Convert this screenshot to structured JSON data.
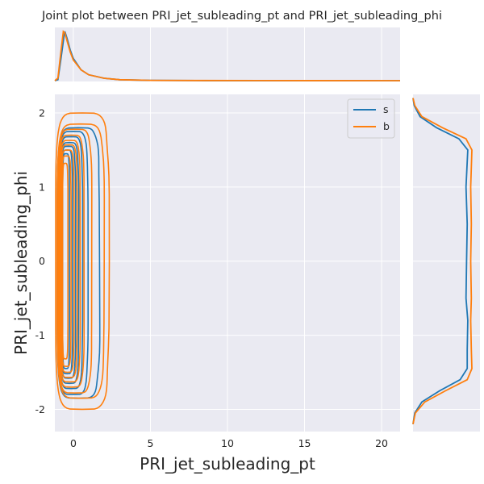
{
  "chart_data": {
    "type": "kde-jointplot",
    "title": "Joint plot between PRI_jet_subleading_pt and PRI_jet_subleading_phi",
    "xlabel": "PRI_jet_subleading_pt",
    "ylabel": "PRI_jet_subleading_phi",
    "xlim": [
      -1.2,
      21.2
    ],
    "ylim": [
      -2.3,
      2.25
    ],
    "x_ticks": [
      0,
      5,
      10,
      15,
      20
    ],
    "y_ticks": [
      -2,
      -1,
      0,
      1,
      2
    ],
    "grid": true,
    "legend_position": "upper-right",
    "series": [
      {
        "name": "s",
        "color": "#1f77b4",
        "contours": [
          {
            "x0": -1.05,
            "x1": 1.7,
            "y0": -1.85,
            "y1": 1.8
          },
          {
            "x0": -0.95,
            "x1": 0.95,
            "y0": -1.8,
            "y1": 1.75
          },
          {
            "x0": -0.9,
            "x1": 0.6,
            "y0": -1.72,
            "y1": 1.68
          },
          {
            "x0": -0.85,
            "x1": 0.35,
            "y0": -1.65,
            "y1": 1.6
          },
          {
            "x0": -0.8,
            "x1": 0.15,
            "y0": -1.58,
            "y1": 1.55
          },
          {
            "x0": -0.75,
            "x1": -0.05,
            "y0": -1.52,
            "y1": 1.5
          },
          {
            "x0": -0.7,
            "x1": -0.25,
            "y0": -1.45,
            "y1": 1.45
          }
        ],
        "x_marginal": [
          [
            -1.2,
            0
          ],
          [
            -1.0,
            0.02
          ],
          [
            -0.8,
            0.45
          ],
          [
            -0.6,
            0.92
          ],
          [
            -0.55,
            1.0
          ],
          [
            -0.4,
            0.85
          ],
          [
            -0.2,
            0.62
          ],
          [
            0,
            0.45
          ],
          [
            0.5,
            0.22
          ],
          [
            1,
            0.12
          ],
          [
            2,
            0.05
          ],
          [
            3,
            0.02
          ],
          [
            5,
            0.006
          ],
          [
            8,
            0.002
          ],
          [
            12,
            0.0
          ],
          [
            21.2,
            0.0
          ]
        ],
        "y_marginal": [
          [
            -2.2,
            0
          ],
          [
            -2.05,
            0.03
          ],
          [
            -1.9,
            0.15
          ],
          [
            -1.75,
            0.45
          ],
          [
            -1.6,
            0.8
          ],
          [
            -1.45,
            0.92
          ],
          [
            -1.2,
            0.92
          ],
          [
            -0.8,
            0.93
          ],
          [
            -0.5,
            0.9
          ],
          [
            0,
            0.91
          ],
          [
            0.5,
            0.92
          ],
          [
            1,
            0.9
          ],
          [
            1.5,
            0.93
          ],
          [
            1.65,
            0.78
          ],
          [
            1.8,
            0.4
          ],
          [
            1.95,
            0.12
          ],
          [
            2.1,
            0.02
          ],
          [
            2.2,
            0
          ]
        ]
      },
      {
        "name": "b",
        "color": "#ff7f0e",
        "contours": [
          {
            "x0": -1.15,
            "x1": 2.3,
            "y0": -2.0,
            "y1": 2.0
          },
          {
            "x0": -1.05,
            "x1": 2.0,
            "y0": -1.85,
            "y1": 1.85
          },
          {
            "x0": -1.0,
            "x1": 1.2,
            "y0": -1.78,
            "y1": 1.78
          },
          {
            "x0": -0.95,
            "x1": 0.7,
            "y0": -1.7,
            "y1": 1.7
          },
          {
            "x0": -0.9,
            "x1": 0.45,
            "y0": -1.63,
            "y1": 1.63
          },
          {
            "x0": -0.85,
            "x1": 0.25,
            "y0": -1.57,
            "y1": 1.57
          },
          {
            "x0": -0.8,
            "x1": 0.05,
            "y0": -1.5,
            "y1": 1.5
          },
          {
            "x0": -0.75,
            "x1": -0.15,
            "y0": -1.42,
            "y1": 1.42
          },
          {
            "x0": -0.7,
            "x1": -0.35,
            "y0": -1.32,
            "y1": 1.32
          }
        ],
        "x_marginal": [
          [
            -1.2,
            0
          ],
          [
            -1.0,
            0.05
          ],
          [
            -0.8,
            0.6
          ],
          [
            -0.65,
            1.0
          ],
          [
            -0.55,
            0.97
          ],
          [
            -0.4,
            0.8
          ],
          [
            -0.2,
            0.58
          ],
          [
            0,
            0.42
          ],
          [
            0.5,
            0.22
          ],
          [
            1,
            0.12
          ],
          [
            2,
            0.05
          ],
          [
            3,
            0.02
          ],
          [
            5,
            0.007
          ],
          [
            8,
            0.003
          ],
          [
            12,
            0.001
          ],
          [
            21.2,
            0.0
          ]
        ],
        "y_marginal": [
          [
            -2.2,
            0
          ],
          [
            -2.05,
            0.04
          ],
          [
            -1.9,
            0.2
          ],
          [
            -1.75,
            0.55
          ],
          [
            -1.6,
            0.92
          ],
          [
            -1.45,
            1.0
          ],
          [
            -1.2,
            0.99
          ],
          [
            -0.8,
            0.98
          ],
          [
            -0.5,
            0.99
          ],
          [
            0,
            0.98
          ],
          [
            0.5,
            0.99
          ],
          [
            1,
            0.98
          ],
          [
            1.5,
            1.0
          ],
          [
            1.65,
            0.9
          ],
          [
            1.8,
            0.5
          ],
          [
            1.95,
            0.15
          ],
          [
            2.1,
            0.03
          ],
          [
            2.2,
            0
          ]
        ]
      }
    ]
  }
}
